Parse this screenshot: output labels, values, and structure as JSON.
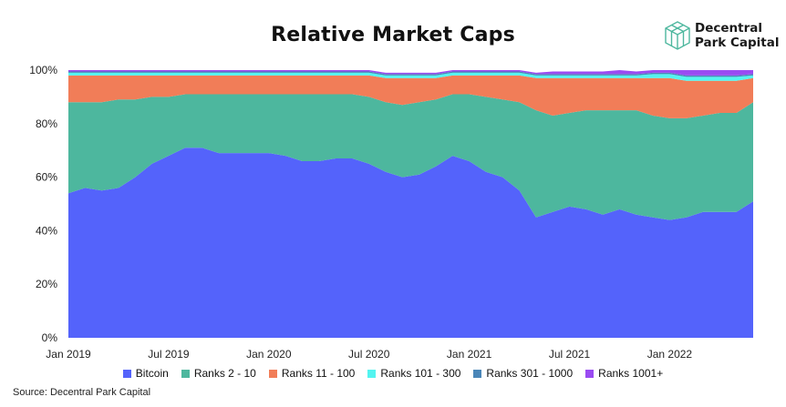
{
  "chart_data": {
    "type": "area",
    "stacked": true,
    "title": "Relative Market Caps",
    "xlabel": "",
    "ylabel": "",
    "ylim": [
      0,
      100
    ],
    "y_ticks": [
      "0%",
      "20%",
      "40%",
      "60%",
      "80%",
      "100%"
    ],
    "x_ticks": [
      "Jan 2019",
      "Jul 2019",
      "Jan 2020",
      "Jul 2020",
      "Jan 2021",
      "Jul 2021",
      "Jan 2022"
    ],
    "x": [
      "2019-01",
      "2019-02",
      "2019-03",
      "2019-04",
      "2019-05",
      "2019-06",
      "2019-07",
      "2019-08",
      "2019-09",
      "2019-10",
      "2019-11",
      "2019-12",
      "2020-01",
      "2020-02",
      "2020-03",
      "2020-04",
      "2020-05",
      "2020-06",
      "2020-07",
      "2020-08",
      "2020-09",
      "2020-10",
      "2020-11",
      "2020-12",
      "2021-01",
      "2021-02",
      "2021-03",
      "2021-04",
      "2021-05",
      "2021-06",
      "2021-07",
      "2021-08",
      "2021-09",
      "2021-10",
      "2021-11",
      "2021-12",
      "2022-01",
      "2022-02",
      "2022-03",
      "2022-04",
      "2022-05",
      "2022-06"
    ],
    "legend_position": "bottom",
    "series": [
      {
        "name": "Bitcoin",
        "color": "#5463fb",
        "values": [
          54,
          56,
          55,
          56,
          60,
          65,
          68,
          71,
          71,
          69,
          69,
          69,
          69,
          68,
          66,
          66,
          67,
          67,
          65,
          62,
          60,
          61,
          64,
          68,
          66,
          62,
          60,
          55,
          45,
          47,
          49,
          48,
          46,
          48,
          46,
          45,
          44,
          45,
          47,
          47,
          47,
          51
        ]
      },
      {
        "name": "Ranks 2 - 10",
        "color": "#4db79e",
        "values": [
          34,
          32,
          33,
          33,
          29,
          25,
          22,
          20,
          20,
          22,
          22,
          22,
          22,
          23,
          25,
          25,
          24,
          24,
          25,
          26,
          27,
          27,
          25,
          23,
          25,
          28,
          29,
          33,
          40,
          36,
          35,
          37,
          39,
          37,
          39,
          38,
          38,
          37,
          36,
          37,
          37,
          37
        ]
      },
      {
        "name": "Ranks 11 - 100",
        "color": "#f17d58",
        "values": [
          10,
          10,
          10,
          9,
          9,
          8,
          8,
          7,
          7,
          7,
          7,
          7,
          7,
          7,
          7,
          7,
          7,
          7,
          8,
          9,
          10,
          9,
          8,
          7,
          7,
          8,
          9,
          10,
          12,
          14,
          13,
          12,
          12,
          12,
          12,
          14,
          15,
          14,
          13,
          12,
          12,
          9
        ]
      },
      {
        "name": "Ranks 101 - 300",
        "color": "#53f4f0",
        "values": [
          1,
          1,
          1,
          1,
          1,
          1,
          1,
          1,
          1,
          1,
          1,
          1,
          1,
          1,
          1,
          1,
          1,
          1,
          1,
          1,
          1,
          1,
          1,
          1,
          1,
          1,
          1,
          1,
          1,
          1,
          1,
          1,
          1,
          1,
          1,
          1.5,
          1.5,
          1.5,
          1.5,
          1.5,
          1.5,
          1
        ]
      },
      {
        "name": "Ranks 301 - 1000",
        "color": "#4a86b8",
        "values": [
          0.5,
          0.5,
          0.5,
          0.5,
          0.5,
          0.5,
          0.5,
          0.5,
          0.5,
          0.5,
          0.5,
          0.5,
          0.5,
          0.5,
          0.5,
          0.5,
          0.5,
          0.5,
          0.5,
          0.5,
          0.5,
          0.5,
          0.5,
          0.5,
          0.5,
          0.5,
          0.5,
          0.5,
          0.5,
          0.5,
          0.5,
          0.5,
          0.5,
          0.5,
          0.5,
          0.5,
          0.5,
          0.5,
          0.5,
          0.5,
          0.5,
          0.5
        ]
      },
      {
        "name": "Ranks 1001+",
        "color": "#9a4bf2",
        "values": [
          0.5,
          0.5,
          0.5,
          0.5,
          0.5,
          0.5,
          0.5,
          0.5,
          0.5,
          0.5,
          0.5,
          0.5,
          0.5,
          0.5,
          0.5,
          0.5,
          0.5,
          0.5,
          0.5,
          0.5,
          0.5,
          0.5,
          0.5,
          0.5,
          0.5,
          0.5,
          0.5,
          0.5,
          0.5,
          1,
          1,
          1,
          1,
          1.5,
          1,
          1,
          1,
          2,
          2,
          2,
          2,
          1.5
        ]
      }
    ]
  },
  "logo": {
    "line1": "Decentral",
    "line2": "Park Capital",
    "icon": "cube-icon"
  },
  "source": "Source: Decentral Park Capital"
}
